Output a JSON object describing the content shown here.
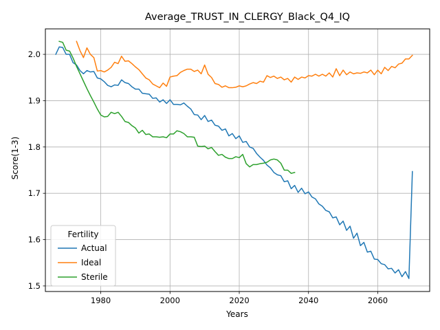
{
  "chart_data": {
    "type": "line",
    "title": "Average_TRUST_IN_CLERGY_Black_Q4_IQ",
    "xlabel": "Years",
    "ylabel": "Score(1-3)",
    "xlim": [
      1964,
      2075
    ],
    "ylim": [
      1.488,
      2.055
    ],
    "xticks": [
      1980,
      2000,
      2020,
      2040,
      2060
    ],
    "yticks": [
      1.5,
      1.6,
      1.7,
      1.8,
      1.9,
      2.0
    ],
    "ytick_labels": [
      "1.5",
      "1.6",
      "1.7",
      "1.8",
      "1.9",
      "2.0"
    ],
    "grid": true,
    "legend": {
      "title": "Fertility",
      "placement": "lower-left"
    },
    "series": [
      {
        "name": "Actual",
        "color": "#1f77b4",
        "points": [
          [
            1967,
            2.0
          ],
          [
            1968,
            2.016
          ],
          [
            1969,
            2.015
          ],
          [
            1970,
            2.0
          ],
          [
            1971,
            2.0
          ],
          [
            1972,
            1.982
          ],
          [
            1973,
            1.977
          ],
          [
            1974,
            1.965
          ],
          [
            1975,
            1.958
          ],
          [
            1976,
            1.965
          ],
          [
            1977,
            1.962
          ],
          [
            1978,
            1.963
          ],
          [
            1979,
            1.949
          ],
          [
            1980,
            1.947
          ],
          [
            1981,
            1.941
          ],
          [
            1982,
            1.933
          ],
          [
            1983,
            1.93
          ],
          [
            1984,
            1.934
          ],
          [
            1985,
            1.933
          ],
          [
            1986,
            1.945
          ],
          [
            1987,
            1.939
          ],
          [
            1988,
            1.937
          ],
          [
            1989,
            1.93
          ],
          [
            1990,
            1.925
          ],
          [
            1991,
            1.925
          ],
          [
            1992,
            1.916
          ],
          [
            1993,
            1.915
          ],
          [
            1994,
            1.914
          ],
          [
            1995,
            1.905
          ],
          [
            1996,
            1.906
          ],
          [
            1997,
            1.897
          ],
          [
            1998,
            1.902
          ],
          [
            1999,
            1.894
          ],
          [
            2000,
            1.902
          ],
          [
            2001,
            1.892
          ],
          [
            2002,
            1.892
          ],
          [
            2003,
            1.891
          ],
          [
            2004,
            1.895
          ],
          [
            2005,
            1.888
          ],
          [
            2006,
            1.882
          ],
          [
            2007,
            1.87
          ],
          [
            2008,
            1.869
          ],
          [
            2009,
            1.859
          ],
          [
            2010,
            1.868
          ],
          [
            2011,
            1.855
          ],
          [
            2012,
            1.858
          ],
          [
            2013,
            1.847
          ],
          [
            2014,
            1.845
          ],
          [
            2015,
            1.836
          ],
          [
            2016,
            1.839
          ],
          [
            2017,
            1.824
          ],
          [
            2018,
            1.829
          ],
          [
            2019,
            1.818
          ],
          [
            2020,
            1.824
          ],
          [
            2021,
            1.81
          ],
          [
            2022,
            1.812
          ],
          [
            2023,
            1.8
          ],
          [
            2024,
            1.797
          ],
          [
            2025,
            1.786
          ],
          [
            2026,
            1.778
          ],
          [
            2027,
            1.771
          ],
          [
            2028,
            1.761
          ],
          [
            2029,
            1.755
          ],
          [
            2030,
            1.745
          ],
          [
            2031,
            1.74
          ],
          [
            2032,
            1.738
          ],
          [
            2033,
            1.725
          ],
          [
            2034,
            1.727
          ],
          [
            2035,
            1.71
          ],
          [
            2036,
            1.717
          ],
          [
            2037,
            1.702
          ],
          [
            2038,
            1.711
          ],
          [
            2039,
            1.699
          ],
          [
            2040,
            1.703
          ],
          [
            2041,
            1.692
          ],
          [
            2042,
            1.688
          ],
          [
            2043,
            1.677
          ],
          [
            2044,
            1.672
          ],
          [
            2045,
            1.663
          ],
          [
            2046,
            1.66
          ],
          [
            2047,
            1.647
          ],
          [
            2048,
            1.649
          ],
          [
            2049,
            1.632
          ],
          [
            2050,
            1.64
          ],
          [
            2051,
            1.62
          ],
          [
            2052,
            1.629
          ],
          [
            2053,
            1.603
          ],
          [
            2054,
            1.614
          ],
          [
            2055,
            1.587
          ],
          [
            2056,
            1.594
          ],
          [
            2057,
            1.573
          ],
          [
            2058,
            1.575
          ],
          [
            2059,
            1.558
          ],
          [
            2060,
            1.557
          ],
          [
            2061,
            1.548
          ],
          [
            2062,
            1.546
          ],
          [
            2063,
            1.537
          ],
          [
            2064,
            1.538
          ],
          [
            2065,
            1.528
          ],
          [
            2066,
            1.535
          ],
          [
            2067,
            1.52
          ],
          [
            2068,
            1.531
          ],
          [
            2069,
            1.516
          ],
          [
            2070,
            1.747
          ]
        ]
      },
      {
        "name": "Ideal",
        "color": "#ff7f0e",
        "points": [
          [
            1973,
            2.028
          ],
          [
            1974,
            2.008
          ],
          [
            1975,
            1.993
          ],
          [
            1976,
            2.014
          ],
          [
            1977,
            2.0
          ],
          [
            1978,
            1.993
          ],
          [
            1979,
            1.964
          ],
          [
            1980,
            1.965
          ],
          [
            1981,
            1.962
          ],
          [
            1982,
            1.966
          ],
          [
            1983,
            1.972
          ],
          [
            1984,
            1.983
          ],
          [
            1985,
            1.98
          ],
          [
            1986,
            1.996
          ],
          [
            1987,
            1.985
          ],
          [
            1988,
            1.986
          ],
          [
            1989,
            1.98
          ],
          [
            1990,
            1.973
          ],
          [
            1991,
            1.967
          ],
          [
            1992,
            1.958
          ],
          [
            1993,
            1.949
          ],
          [
            1994,
            1.945
          ],
          [
            1995,
            1.936
          ],
          [
            1996,
            1.932
          ],
          [
            1997,
            1.928
          ],
          [
            1998,
            1.938
          ],
          [
            1999,
            1.931
          ],
          [
            2000,
            1.951
          ],
          [
            2001,
            1.953
          ],
          [
            2002,
            1.954
          ],
          [
            2003,
            1.961
          ],
          [
            2004,
            1.965
          ],
          [
            2005,
            1.968
          ],
          [
            2006,
            1.968
          ],
          [
            2007,
            1.963
          ],
          [
            2008,
            1.966
          ],
          [
            2009,
            1.958
          ],
          [
            2010,
            1.977
          ],
          [
            2011,
            1.957
          ],
          [
            2012,
            1.95
          ],
          [
            2013,
            1.937
          ],
          [
            2014,
            1.935
          ],
          [
            2015,
            1.929
          ],
          [
            2016,
            1.932
          ],
          [
            2017,
            1.928
          ],
          [
            2018,
            1.928
          ],
          [
            2019,
            1.929
          ],
          [
            2020,
            1.932
          ],
          [
            2021,
            1.93
          ],
          [
            2022,
            1.932
          ],
          [
            2023,
            1.936
          ],
          [
            2024,
            1.939
          ],
          [
            2025,
            1.937
          ],
          [
            2026,
            1.942
          ],
          [
            2027,
            1.94
          ],
          [
            2028,
            1.954
          ],
          [
            2029,
            1.95
          ],
          [
            2030,
            1.953
          ],
          [
            2031,
            1.948
          ],
          [
            2032,
            1.951
          ],
          [
            2033,
            1.945
          ],
          [
            2034,
            1.948
          ],
          [
            2035,
            1.94
          ],
          [
            2036,
            1.951
          ],
          [
            2037,
            1.946
          ],
          [
            2038,
            1.951
          ],
          [
            2039,
            1.949
          ],
          [
            2040,
            1.954
          ],
          [
            2041,
            1.953
          ],
          [
            2042,
            1.957
          ],
          [
            2043,
            1.953
          ],
          [
            2044,
            1.957
          ],
          [
            2045,
            1.953
          ],
          [
            2046,
            1.96
          ],
          [
            2047,
            1.951
          ],
          [
            2048,
            1.969
          ],
          [
            2049,
            1.954
          ],
          [
            2050,
            1.966
          ],
          [
            2051,
            1.956
          ],
          [
            2052,
            1.962
          ],
          [
            2053,
            1.958
          ],
          [
            2054,
            1.96
          ],
          [
            2055,
            1.959
          ],
          [
            2056,
            1.962
          ],
          [
            2057,
            1.96
          ],
          [
            2058,
            1.966
          ],
          [
            2059,
            1.956
          ],
          [
            2060,
            1.966
          ],
          [
            2061,
            1.958
          ],
          [
            2062,
            1.972
          ],
          [
            2063,
            1.965
          ],
          [
            2064,
            1.974
          ],
          [
            2065,
            1.971
          ],
          [
            2066,
            1.979
          ],
          [
            2067,
            1.981
          ],
          [
            2068,
            1.99
          ],
          [
            2069,
            1.99
          ],
          [
            2070,
            1.998
          ]
        ]
      },
      {
        "name": "Sterile",
        "color": "#2ca02c",
        "points": [
          [
            1968,
            2.028
          ],
          [
            1969,
            2.026
          ],
          [
            1970,
            2.009
          ],
          [
            1971,
            2.007
          ],
          [
            1972,
            1.992
          ],
          [
            1973,
            1.974
          ],
          [
            1974,
            1.958
          ],
          [
            1975,
            1.942
          ],
          [
            1976,
            1.926
          ],
          [
            1977,
            1.911
          ],
          [
            1978,
            1.897
          ],
          [
            1979,
            1.882
          ],
          [
            1980,
            1.869
          ],
          [
            1981,
            1.865
          ],
          [
            1982,
            1.866
          ],
          [
            1983,
            1.875
          ],
          [
            1984,
            1.872
          ],
          [
            1985,
            1.875
          ],
          [
            1986,
            1.866
          ],
          [
            1987,
            1.855
          ],
          [
            1988,
            1.853
          ],
          [
            1989,
            1.846
          ],
          [
            1990,
            1.841
          ],
          [
            1991,
            1.83
          ],
          [
            1992,
            1.836
          ],
          [
            1993,
            1.827
          ],
          [
            1994,
            1.828
          ],
          [
            1995,
            1.822
          ],
          [
            1996,
            1.822
          ],
          [
            1997,
            1.821
          ],
          [
            1998,
            1.822
          ],
          [
            1999,
            1.82
          ],
          [
            2000,
            1.828
          ],
          [
            2001,
            1.828
          ],
          [
            2002,
            1.835
          ],
          [
            2003,
            1.833
          ],
          [
            2004,
            1.829
          ],
          [
            2005,
            1.822
          ],
          [
            2006,
            1.822
          ],
          [
            2007,
            1.821
          ],
          [
            2008,
            1.802
          ],
          [
            2009,
            1.801
          ],
          [
            2010,
            1.802
          ],
          [
            2011,
            1.796
          ],
          [
            2012,
            1.799
          ],
          [
            2013,
            1.79
          ],
          [
            2014,
            1.782
          ],
          [
            2015,
            1.784
          ],
          [
            2016,
            1.778
          ],
          [
            2017,
            1.775
          ],
          [
            2018,
            1.775
          ],
          [
            2019,
            1.779
          ],
          [
            2020,
            1.777
          ],
          [
            2021,
            1.784
          ],
          [
            2022,
            1.764
          ],
          [
            2023,
            1.757
          ],
          [
            2024,
            1.762
          ],
          [
            2025,
            1.762
          ],
          [
            2026,
            1.764
          ],
          [
            2027,
            1.765
          ],
          [
            2028,
            1.767
          ],
          [
            2029,
            1.772
          ],
          [
            2030,
            1.774
          ],
          [
            2031,
            1.772
          ],
          [
            2032,
            1.765
          ],
          [
            2033,
            1.75
          ],
          [
            2034,
            1.75
          ],
          [
            2035,
            1.743
          ],
          [
            2036,
            1.745
          ]
        ]
      }
    ]
  }
}
